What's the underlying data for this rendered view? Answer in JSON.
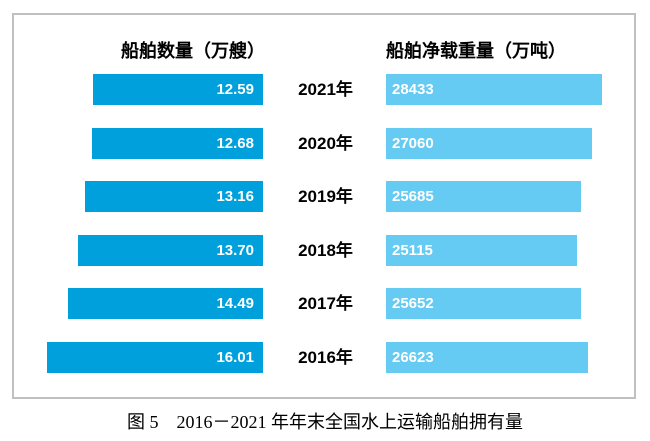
{
  "chart_data": {
    "type": "bar",
    "variant": "tornado",
    "orientation": "horizontal",
    "left_title": "船舶数量（万艘）",
    "right_title": "船舶净载重量（万吨）",
    "categories": [
      "2021年",
      "2020年",
      "2019年",
      "2018年",
      "2017年",
      "2016年"
    ],
    "series": [
      {
        "name": "船舶数量（万艘）",
        "side": "left",
        "alignment": "right-aligned, grows leftward",
        "color": "#00A0DC",
        "values": [
          12.59,
          12.68,
          13.16,
          13.7,
          14.49,
          16.01
        ],
        "labels": [
          "12.59",
          "12.68",
          "13.16",
          "13.70",
          "14.49",
          "16.01"
        ]
      },
      {
        "name": "船舶净载重量（万吨）",
        "side": "right",
        "alignment": "left-aligned, grows rightward",
        "color": "#66CBF2",
        "values": [
          28433,
          27060,
          25685,
          25115,
          25652,
          26623
        ],
        "labels": [
          "28433",
          "27060",
          "25685",
          "25115",
          "25652",
          "26623"
        ]
      }
    ],
    "value_label_color": "#ffffff",
    "category_label_color": "#000000",
    "frame_border_color": "#c0c0c0",
    "grid": false,
    "legend": "none"
  },
  "caption": "图 5　2016－2021 年年末全国水上运输船舶拥有量"
}
